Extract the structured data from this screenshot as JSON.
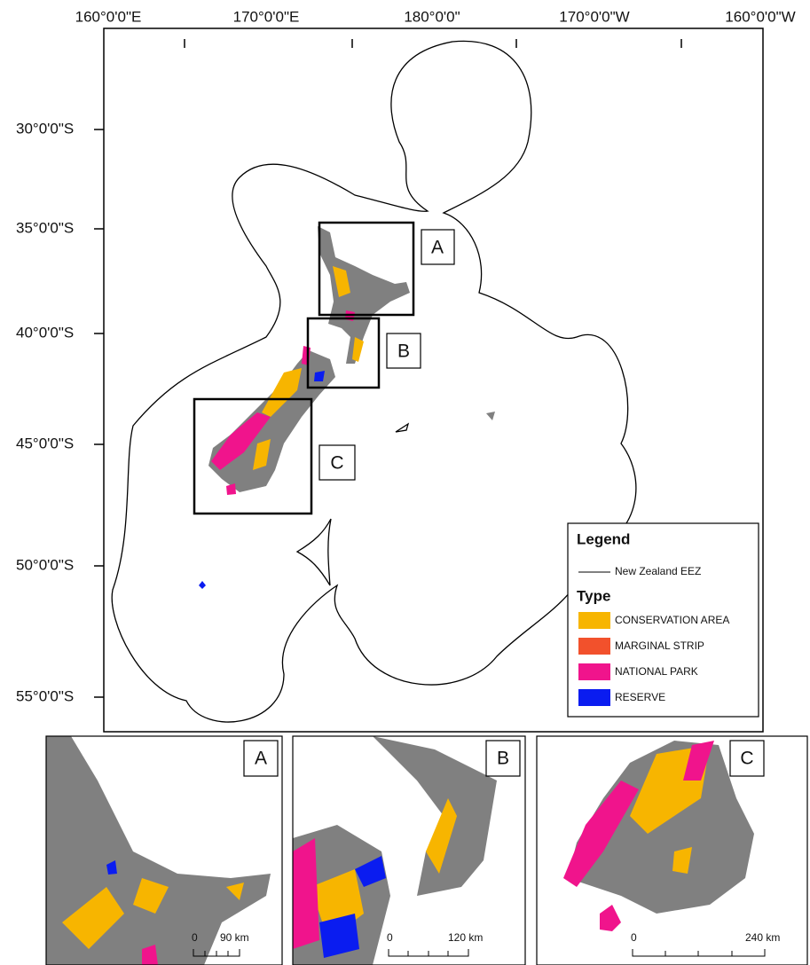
{
  "map": {
    "x_labels": [
      "160°0'0\"E",
      "170°0'0\"E",
      "180°0'0\"",
      "170°0'0\"W",
      "160°0'0\"W"
    ],
    "y_labels": [
      "30°0'0\"S",
      "35°0'0\"S",
      "40°0'0\"S",
      "45°0'0\"S",
      "50°0'0\"S",
      "55°0'0\"S"
    ],
    "inset_markers": [
      "A",
      "B",
      "C"
    ],
    "legend": {
      "title": "Legend",
      "eez": "New Zealand EEZ",
      "type_title": "Type",
      "items": [
        {
          "label": "CONSERVATION AREA",
          "color": "#f7b500"
        },
        {
          "label": "MARGINAL STRIP",
          "color": "#f2512c"
        },
        {
          "label": "NATIONAL PARK",
          "color": "#f0148c"
        },
        {
          "label": "RESERVE",
          "color": "#0a1cf0"
        }
      ]
    }
  },
  "insets": [
    {
      "label": "A",
      "scale": {
        "start": "0",
        "end": "90 km"
      }
    },
    {
      "label": "B",
      "scale": {
        "start": "0",
        "end": "120 km"
      }
    },
    {
      "label": "C",
      "scale": {
        "start": "0",
        "end": "240 km"
      }
    }
  ]
}
